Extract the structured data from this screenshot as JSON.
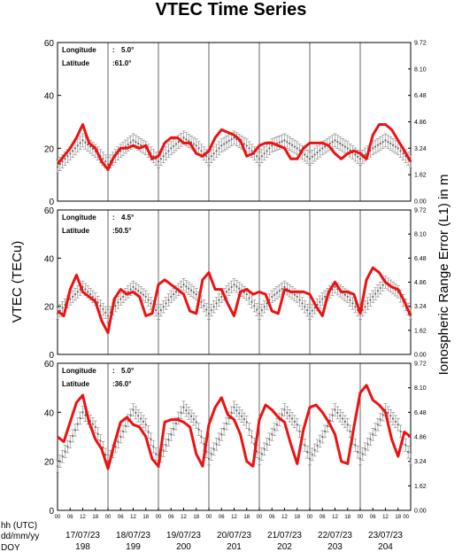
{
  "title": "VTEC Time Series",
  "ylabel_left": "VTEC (TECu)",
  "ylabel_right": "Ionospheric Range Error (L1) in m",
  "row_labels": [
    "hh (UTC)",
    "dd/mm/yy",
    "DOY"
  ],
  "hour_ticks": [
    "00",
    "06",
    "12",
    "18"
  ],
  "dates": [
    "17/07/23",
    "18/07/23",
    "19/07/23",
    "20/07/23",
    "21/07/23",
    "22/07/23",
    "23/07/23"
  ],
  "doys": [
    "198",
    "199",
    "200",
    "201",
    "202",
    "203",
    "204"
  ],
  "colors": {
    "observed": "#ee1111",
    "reference": "#808080",
    "day_lines": "#000000"
  },
  "chart_data": [
    {
      "type": "line",
      "longitude_label": "Longitude",
      "longitude": "5.0°",
      "latitude_label": "Latitude",
      "latitude": "61.0°",
      "ylim": [
        0,
        60
      ],
      "yticks": [
        0,
        20,
        40,
        60
      ],
      "right_ticks": [
        "0.00",
        "1.62",
        "3.24",
        "4.86",
        "6.48",
        "8.10",
        "9.72"
      ],
      "xlim_hours": [
        0,
        168
      ],
      "series": [
        {
          "values_x_hours": [
            0,
            6,
            12,
            18,
            24,
            30,
            36,
            42,
            48,
            54,
            60,
            66,
            72,
            78,
            84,
            90,
            96,
            102,
            108,
            114,
            120,
            126,
            132,
            138,
            144,
            150,
            156,
            162,
            168
          ],
          "values": [
            13,
            18,
            23,
            19,
            14,
            19,
            23,
            20,
            15,
            20,
            24,
            21,
            16,
            21,
            24,
            21,
            16,
            21,
            23,
            20,
            16,
            20,
            23,
            20,
            16,
            20,
            23,
            20,
            15
          ]
        },
        {
          "values_x_hours": [
            0,
            3,
            6,
            9,
            12,
            15,
            18,
            21,
            24,
            27,
            30,
            33,
            36,
            39,
            42,
            45,
            48,
            51,
            54,
            57,
            60,
            63,
            66,
            69,
            72,
            75,
            78,
            81,
            84,
            87,
            90,
            93,
            96,
            99,
            102,
            105,
            108,
            111,
            114,
            117,
            120,
            123,
            126,
            129,
            132,
            135,
            138,
            141,
            144,
            147,
            150,
            153,
            156,
            159,
            162,
            165,
            168
          ],
          "values": [
            14,
            17,
            20,
            24,
            29,
            22,
            20,
            15,
            12,
            17,
            20,
            20,
            21,
            20,
            21,
            16,
            17,
            22,
            24,
            24,
            22,
            22,
            18,
            17,
            19,
            24,
            27,
            26,
            25,
            23,
            17,
            18,
            21,
            22,
            22,
            21,
            20,
            16,
            16,
            20,
            22,
            22,
            22,
            21,
            18,
            16,
            18,
            19,
            18,
            16,
            25,
            29,
            29,
            27,
            23,
            19,
            15
          ]
        }
      ]
    },
    {
      "type": "line",
      "longitude_label": "Longitude",
      "longitude": "4.5°",
      "latitude_label": "Latitude",
      "latitude": "50.5°",
      "ylim": [
        0,
        60
      ],
      "yticks": [
        0,
        20,
        40,
        60
      ],
      "right_ticks": [
        "0.00",
        "1.62",
        "3.24",
        "4.86",
        "6.48",
        "8.10",
        "9.72"
      ],
      "xlim_hours": [
        0,
        168
      ],
      "series": [
        {
          "values_x_hours": [
            0,
            6,
            12,
            18,
            24,
            30,
            36,
            42,
            48,
            54,
            60,
            66,
            72,
            78,
            84,
            90,
            96,
            102,
            108,
            114,
            120,
            126,
            132,
            138,
            144,
            150,
            156,
            162,
            168
          ],
          "values": [
            17,
            23,
            28,
            23,
            16,
            23,
            28,
            24,
            17,
            24,
            29,
            25,
            17,
            24,
            29,
            25,
            17,
            24,
            28,
            24,
            17,
            23,
            28,
            24,
            17,
            24,
            30,
            26,
            17
          ]
        },
        {
          "values_x_hours": [
            0,
            3,
            6,
            9,
            12,
            15,
            18,
            21,
            24,
            27,
            30,
            33,
            36,
            39,
            42,
            45,
            48,
            51,
            54,
            57,
            60,
            63,
            66,
            69,
            72,
            75,
            78,
            81,
            84,
            87,
            90,
            93,
            96,
            99,
            102,
            105,
            108,
            111,
            114,
            117,
            120,
            123,
            126,
            129,
            132,
            135,
            138,
            141,
            144,
            147,
            150,
            153,
            156,
            159,
            162,
            165,
            168
          ],
          "values": [
            18,
            16,
            27,
            33,
            26,
            24,
            22,
            14,
            9,
            23,
            27,
            25,
            26,
            24,
            16,
            17,
            29,
            31,
            29,
            27,
            25,
            18,
            17,
            31,
            34,
            27,
            27,
            21,
            16,
            26,
            27,
            25,
            26,
            25,
            18,
            17,
            27,
            26,
            26,
            26,
            25,
            20,
            16,
            26,
            30,
            26,
            26,
            25,
            17,
            31,
            36,
            34,
            30,
            28,
            27,
            22,
            16
          ]
        }
      ]
    },
    {
      "type": "line",
      "longitude_label": "Longitude",
      "longitude": "5.0°",
      "latitude_label": "Latitude",
      "latitude": "36.0°",
      "ylim": [
        0,
        60
      ],
      "yticks": [
        0,
        20,
        40,
        60
      ],
      "right_ticks": [
        "0.00",
        "1.62",
        "3.24",
        "4.86",
        "6.48",
        "8.10",
        "9.72"
      ],
      "xlim_hours": [
        0,
        168
      ],
      "series": [
        {
          "values_x_hours": [
            0,
            6,
            12,
            18,
            24,
            30,
            36,
            42,
            48,
            54,
            60,
            66,
            72,
            78,
            84,
            90,
            96,
            102,
            108,
            114,
            120,
            126,
            132,
            138,
            144,
            150,
            156,
            162,
            168
          ],
          "values": [
            18,
            28,
            40,
            34,
            20,
            30,
            41,
            35,
            20,
            31,
            42,
            36,
            21,
            31,
            42,
            36,
            21,
            31,
            41,
            35,
            21,
            30,
            41,
            35,
            21,
            31,
            41,
            35,
            21
          ]
        },
        {
          "values_x_hours": [
            0,
            3,
            6,
            9,
            12,
            15,
            18,
            21,
            24,
            27,
            30,
            33,
            36,
            39,
            42,
            45,
            48,
            51,
            54,
            57,
            60,
            63,
            66,
            69,
            72,
            75,
            78,
            81,
            84,
            87,
            90,
            93,
            96,
            99,
            102,
            105,
            108,
            111,
            114,
            117,
            120,
            123,
            126,
            129,
            132,
            135,
            138,
            141,
            144,
            147,
            150,
            153,
            156,
            159,
            162,
            165,
            168
          ],
          "values": [
            30,
            28,
            36,
            44,
            47,
            36,
            29,
            25,
            17,
            27,
            36,
            38,
            35,
            34,
            30,
            21,
            18,
            36,
            37,
            37,
            36,
            34,
            23,
            18,
            35,
            42,
            46,
            39,
            37,
            31,
            20,
            18,
            37,
            43,
            41,
            38,
            36,
            27,
            19,
            33,
            42,
            43,
            40,
            36,
            31,
            20,
            19,
            34,
            48,
            51,
            45,
            43,
            40,
            29,
            22,
            32,
            30
          ]
        }
      ]
    }
  ]
}
